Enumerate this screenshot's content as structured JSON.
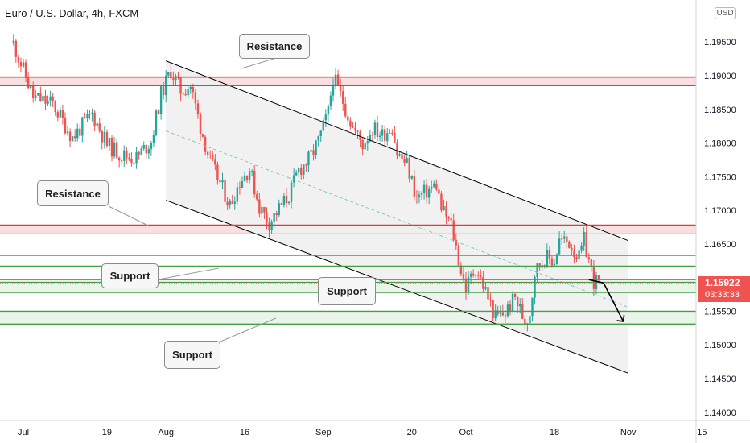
{
  "symbol_title": "Euro / U.S. Dollar, 4h, FXCM",
  "currency": "USD",
  "last_price": "1.15922",
  "countdown": "03:33:33",
  "annotations": {
    "resistance_top": "Resistance",
    "resistance_mid": "Resistance",
    "support_left": "Support",
    "support_center": "Support",
    "support_bottom": "Support"
  },
  "colors": {
    "up_candle": "#26a69a",
    "down_candle": "#ef5350",
    "resistance_line": "#e53935",
    "resistance_fill": "#f8d7d7",
    "support_line": "#43a047",
    "support_fill": "#e3f2e3",
    "channel_fill": "#f0f0f0",
    "channel_line": "#000000",
    "midline": "#7ec8c0",
    "axis_text": "#131722",
    "grid": "#f0f3fa"
  },
  "chart_data": {
    "type": "candlestick",
    "title": "Euro / U.S. Dollar, 4h, FXCM",
    "ylim": [
      1.14,
      1.2
    ],
    "y_ticks": [
      1.14,
      1.145,
      1.15,
      1.155,
      1.16,
      1.165,
      1.17,
      1.175,
      1.18,
      1.185,
      1.19,
      1.195
    ],
    "y_tick_labels": [
      "1.14000",
      "1.14500",
      "1.15000",
      "1.15500",
      "",
      "1.16500",
      "1.17000",
      "1.17500",
      "1.18000",
      "1.18500",
      "1.19000",
      "1.19500"
    ],
    "x_tick_labels": [
      "Jul",
      "19",
      "Aug",
      "16",
      "Sep",
      "20",
      "Oct",
      "18",
      "Nov",
      "15"
    ],
    "x_tick_days": [
      0,
      17,
      29,
      45,
      61,
      79,
      90,
      108,
      123,
      138
    ],
    "x_range_days": [
      -3,
      140
    ],
    "x_origin": "2021-07-02",
    "last_price": 1.15922,
    "price_path": [
      [
        -2,
        1.1948
      ],
      [
        2,
        1.1868
      ],
      [
        6,
        1.1858
      ],
      [
        10,
        1.1808
      ],
      [
        14,
        1.1843
      ],
      [
        17,
        1.1798
      ],
      [
        20,
        1.1782
      ],
      [
        23,
        1.1778
      ],
      [
        26,
        1.1803
      ],
      [
        28,
        1.1872
      ],
      [
        30,
        1.1908
      ],
      [
        32,
        1.1878
      ],
      [
        34,
        1.1885
      ],
      [
        36,
        1.1825
      ],
      [
        38,
        1.1772
      ],
      [
        40,
        1.174
      ],
      [
        42,
        1.1708
      ],
      [
        44,
        1.1743
      ],
      [
        46,
        1.1762
      ],
      [
        48,
        1.1705
      ],
      [
        50,
        1.1682
      ],
      [
        52,
        1.1702
      ],
      [
        54,
        1.1722
      ],
      [
        56,
        1.176
      ],
      [
        58,
        1.1775
      ],
      [
        60,
        1.1802
      ],
      [
        62,
        1.1845
      ],
      [
        63,
        1.1898
      ],
      [
        65,
        1.1862
      ],
      [
        67,
        1.1822
      ],
      [
        69,
        1.1798
      ],
      [
        71,
        1.1822
      ],
      [
        73,
        1.1812
      ],
      [
        75,
        1.1826
      ],
      [
        76,
        1.1785
      ],
      [
        78,
        1.1768
      ],
      [
        80,
        1.1718
      ],
      [
        82,
        1.1728
      ],
      [
        84,
        1.1738
      ],
      [
        85,
        1.1702
      ],
      [
        87,
        1.1678
      ],
      [
        88,
        1.1645
      ],
      [
        89,
        1.161
      ],
      [
        90,
        1.1585
      ],
      [
        92,
        1.1615
      ],
      [
        94,
        1.158
      ],
      [
        96,
        1.154
      ],
      [
        98,
        1.1548
      ],
      [
        100,
        1.157
      ],
      [
        102,
        1.1535
      ],
      [
        103,
        1.1548
      ],
      [
        104,
        1.1608
      ],
      [
        106,
        1.163
      ],
      [
        108,
        1.1625
      ],
      [
        109,
        1.1655
      ],
      [
        111,
        1.1652
      ],
      [
        113,
        1.1628
      ],
      [
        114,
        1.1655
      ],
      [
        116,
        1.1595
      ],
      [
        117,
        1.1592
      ]
    ],
    "resistance_zones": [
      [
        1.1885,
        1.1898
      ],
      [
        1.1665,
        1.1678
      ]
    ],
    "support_levels": [
      1.1633,
      1.1617,
      1.1597,
      1.1593,
      1.1578,
      1.155,
      1.1531
    ],
    "support_zones": [
      [
        1.1578,
        1.1597
      ],
      [
        1.1531,
        1.155
      ]
    ],
    "channel": {
      "upper": [
        [
          29,
          1.1922
        ],
        [
          123,
          1.1655
        ]
      ],
      "lower": [
        [
          29,
          1.1715
        ],
        [
          123,
          1.1458
        ]
      ],
      "mid": [
        [
          29,
          1.1818
        ],
        [
          123,
          1.1556
        ]
      ]
    },
    "projection_arrow": [
      [
        115,
        1.1597
      ],
      [
        118,
        1.1592
      ],
      [
        122,
        1.1535
      ]
    ],
    "grid": false
  }
}
